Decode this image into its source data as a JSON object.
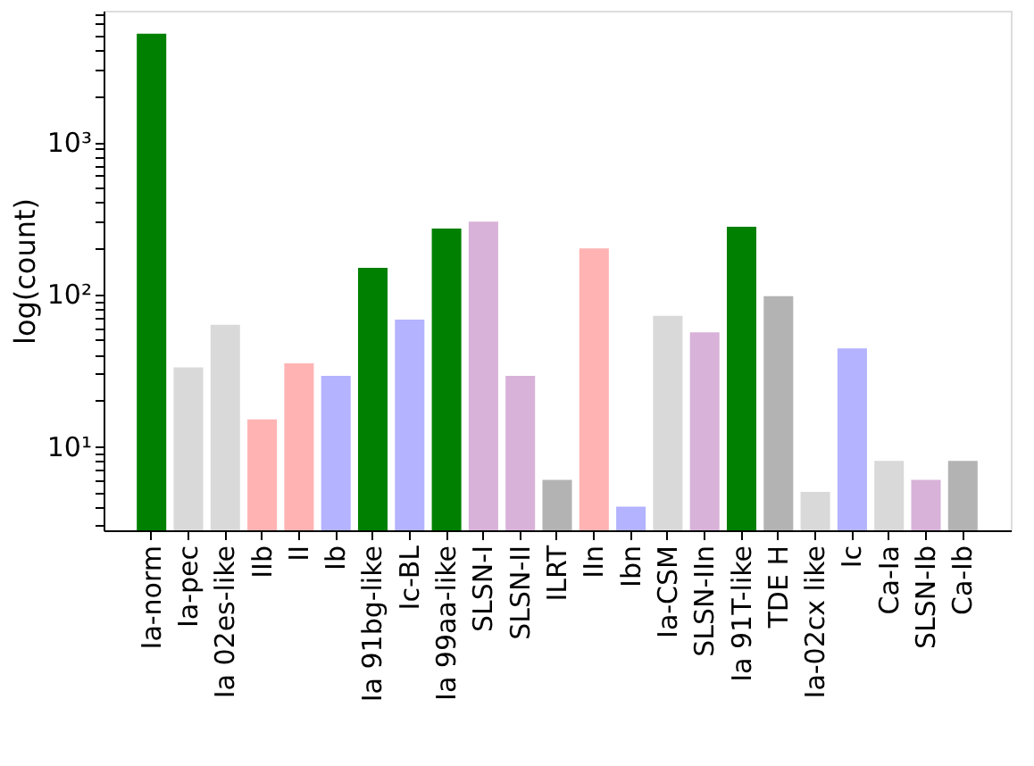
{
  "chart_data": {
    "type": "bar",
    "ylabel": "log(count)",
    "log": true,
    "categories": [
      "Ia-norm",
      "Ia-pec",
      "Ia 02es-like",
      "IIb",
      "II",
      "Ib",
      "Ia 91bg-like",
      "Ic-BL",
      "Ia 99aa-like",
      "SLSN-I",
      "SLSN-II",
      "ILRT",
      "IIn",
      "Ibn",
      "Ia-CSM",
      "SLSN-IIn",
      "Ia 91T-like",
      "TDE H",
      "Ia-02cx like",
      "Ic",
      "Ca-Ia",
      "SLSN-Ib",
      "Ca-Ib"
    ],
    "values": [
      5150,
      33,
      63,
      15,
      35,
      29,
      149,
      68,
      270,
      300,
      29,
      6,
      200,
      4,
      72,
      56,
      277,
      97,
      5,
      44,
      8,
      6,
      8
    ],
    "colors": [
      "#008000",
      "#d9d9d9",
      "#d9d9d9",
      "#ffb3b3",
      "#ffb3b3",
      "#b3b3ff",
      "#008000",
      "#b3b3ff",
      "#008000",
      "#d8b2d8",
      "#d8b2d8",
      "#b3b3b3",
      "#ffb3b3",
      "#b3b3ff",
      "#d9d9d9",
      "#d8b2d8",
      "#008000",
      "#b3b3b3",
      "#d9d9d9",
      "#b3b3ff",
      "#d9d9d9",
      "#d8b2d8",
      "#b3b3b3"
    ],
    "ylim": [
      2.8,
      7300
    ],
    "yticks": [
      {
        "value": 3,
        "label": null
      },
      {
        "value": 4,
        "label": null
      },
      {
        "value": 5,
        "label": null
      },
      {
        "value": 6,
        "label": null
      },
      {
        "value": 7,
        "label": null
      },
      {
        "value": 8,
        "label": null
      },
      {
        "value": 9,
        "label": null
      },
      {
        "value": 10,
        "label": "10¹"
      },
      {
        "value": 20,
        "label": null
      },
      {
        "value": 30,
        "label": null
      },
      {
        "value": 40,
        "label": null
      },
      {
        "value": 50,
        "label": null
      },
      {
        "value": 60,
        "label": null
      },
      {
        "value": 70,
        "label": null
      },
      {
        "value": 80,
        "label": null
      },
      {
        "value": 90,
        "label": null
      },
      {
        "value": 100,
        "label": "10²"
      },
      {
        "value": 200,
        "label": null
      },
      {
        "value": 300,
        "label": null
      },
      {
        "value": 400,
        "label": null
      },
      {
        "value": 500,
        "label": null
      },
      {
        "value": 600,
        "label": null
      },
      {
        "value": 700,
        "label": null
      },
      {
        "value": 800,
        "label": null
      },
      {
        "value": 900,
        "label": null
      },
      {
        "value": 1000,
        "label": "10³"
      },
      {
        "value": 2000,
        "label": null
      },
      {
        "value": 3000,
        "label": null
      },
      {
        "value": 4000,
        "label": null
      },
      {
        "value": 5000,
        "label": null
      },
      {
        "value": 6000,
        "label": null
      },
      {
        "value": 7000,
        "label": null
      }
    ],
    "grid": false,
    "legend": false
  }
}
